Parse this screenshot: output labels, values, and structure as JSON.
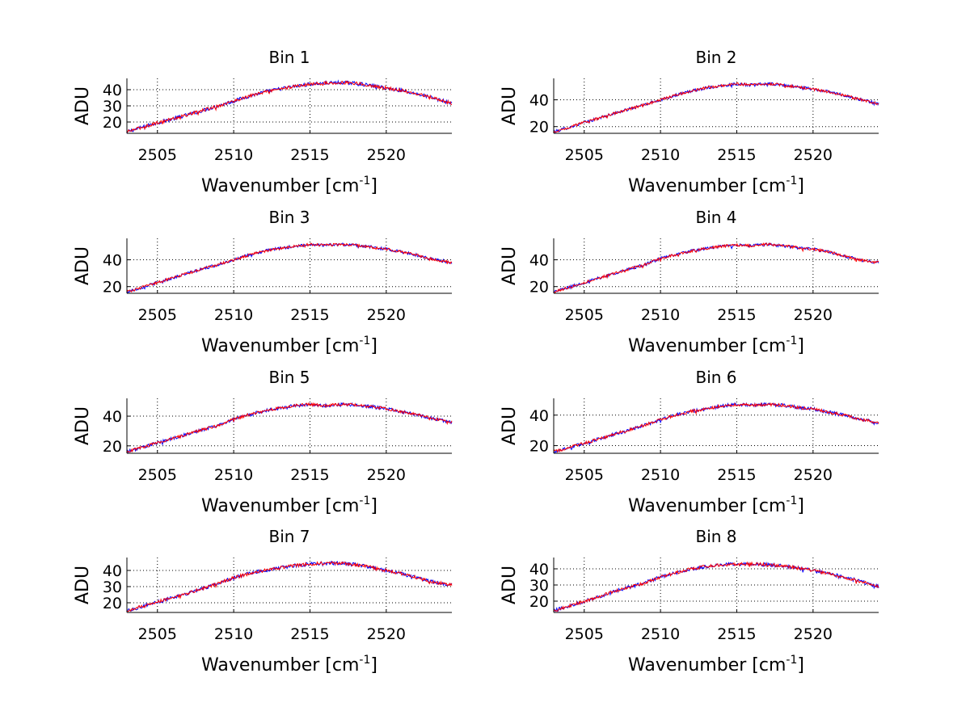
{
  "chart_data": [
    {
      "type": "line",
      "title": "Bin 1",
      "xlabel": "Wavenumber [cm",
      "xlabel_sup": "-1",
      "xlabel_end": "]",
      "ylabel": "ADU",
      "xlim": [
        2503,
        2524.3
      ],
      "ylim": [
        13,
        47
      ],
      "xticks": [
        2505,
        2510,
        2515,
        2520
      ],
      "yticks": [
        20,
        30,
        40
      ],
      "series": [
        {
          "color": "#0000ff",
          "x": [
            2503,
            2505,
            2507,
            2509,
            2510,
            2511,
            2512,
            2513,
            2514,
            2515,
            2516,
            2517,
            2518,
            2519,
            2520,
            2521,
            2522,
            2523,
            2524.3
          ],
          "y": [
            14,
            19.5,
            24.5,
            30,
            33,
            36,
            38.5,
            40.5,
            42,
            43.5,
            44,
            44.5,
            44,
            42.5,
            41,
            39.5,
            37.5,
            35,
            31.5
          ]
        },
        {
          "color": "#ff0000",
          "x": [
            2503,
            2505,
            2507,
            2509,
            2510,
            2511,
            2512,
            2513,
            2514,
            2515,
            2516,
            2517,
            2518,
            2519,
            2520,
            2521,
            2522,
            2523,
            2524.3
          ],
          "y": [
            14,
            19.5,
            24.5,
            30,
            33,
            36,
            38.5,
            40.5,
            42,
            43.5,
            44,
            44.5,
            44,
            42.5,
            41,
            39.5,
            37.5,
            35,
            31.5
          ]
        }
      ]
    },
    {
      "type": "line",
      "title": "Bin 2",
      "xlabel": "Wavenumber [cm",
      "xlabel_sup": "-1",
      "xlabel_end": "]",
      "ylabel": "ADU",
      "xlim": [
        2503,
        2524.3
      ],
      "ylim": [
        15,
        56
      ],
      "xticks": [
        2505,
        2510,
        2515,
        2520
      ],
      "yticks": [
        20,
        40
      ],
      "series": [
        {
          "color": "#0000ff",
          "x": [
            2503,
            2505,
            2507,
            2509,
            2510,
            2511,
            2512,
            2513,
            2514,
            2515,
            2516,
            2517,
            2518,
            2519,
            2520,
            2521,
            2522,
            2523,
            2524.3
          ],
          "y": [
            16,
            23,
            30,
            36.5,
            40,
            43.5,
            46.5,
            49,
            50.5,
            52,
            51,
            52,
            51,
            49.5,
            48,
            46,
            43.5,
            40.5,
            37
          ]
        },
        {
          "color": "#ff0000",
          "x": [
            2503,
            2505,
            2507,
            2509,
            2510,
            2511,
            2512,
            2513,
            2514,
            2515,
            2516,
            2517,
            2518,
            2519,
            2520,
            2521,
            2522,
            2523,
            2524.3
          ],
          "y": [
            16,
            23,
            30,
            36.5,
            40,
            43.5,
            46.5,
            49,
            50.5,
            52,
            51,
            52,
            51,
            49.5,
            48,
            46,
            43.5,
            40.5,
            37
          ]
        }
      ]
    },
    {
      "type": "line",
      "title": "Bin 3",
      "xlabel": "Wavenumber [cm",
      "xlabel_sup": "-1",
      "xlabel_end": "]",
      "ylabel": "ADU",
      "xlim": [
        2503,
        2524.3
      ],
      "ylim": [
        15,
        56
      ],
      "xticks": [
        2505,
        2510,
        2515,
        2520
      ],
      "yticks": [
        20,
        40
      ],
      "series": [
        {
          "color": "#0000ff",
          "x": [
            2503,
            2505,
            2507,
            2509,
            2510,
            2511,
            2512,
            2513,
            2514,
            2515,
            2516,
            2517,
            2518,
            2519,
            2520,
            2521,
            2522,
            2523,
            2524.3
          ],
          "y": [
            16,
            23,
            30,
            36.5,
            40,
            43.5,
            46.5,
            48.5,
            50,
            51.5,
            51,
            51.5,
            51,
            49.5,
            48,
            46,
            43.5,
            40.5,
            38
          ]
        },
        {
          "color": "#ff0000",
          "x": [
            2503,
            2505,
            2507,
            2509,
            2510,
            2511,
            2512,
            2513,
            2514,
            2515,
            2516,
            2517,
            2518,
            2519,
            2520,
            2521,
            2522,
            2523,
            2524.3
          ],
          "y": [
            16,
            23,
            30,
            36.5,
            40,
            43.5,
            46.5,
            48.5,
            50,
            51.5,
            51,
            51.5,
            51,
            49.5,
            48,
            46,
            43.5,
            40.5,
            38
          ]
        }
      ]
    },
    {
      "type": "line",
      "title": "Bin 4",
      "xlabel": "Wavenumber [cm",
      "xlabel_sup": "-1",
      "xlabel_end": "]",
      "ylabel": "ADU",
      "xlim": [
        2503,
        2524.3
      ],
      "ylim": [
        15,
        56
      ],
      "xticks": [
        2505,
        2510,
        2515,
        2520
      ],
      "yticks": [
        20,
        40
      ],
      "series": [
        {
          "color": "#0000ff",
          "x": [
            2503,
            2505,
            2507,
            2509,
            2510,
            2511,
            2512,
            2513,
            2514,
            2515,
            2516,
            2517,
            2518,
            2519,
            2520,
            2521,
            2522,
            2523,
            2524.3
          ],
          "y": [
            16,
            23,
            30,
            36.5,
            41,
            44,
            46.5,
            48.5,
            50,
            51,
            50.5,
            51.5,
            50.5,
            49,
            48,
            46,
            43,
            40,
            38
          ]
        },
        {
          "color": "#ff0000",
          "x": [
            2503,
            2505,
            2507,
            2509,
            2510,
            2511,
            2512,
            2513,
            2514,
            2515,
            2516,
            2517,
            2518,
            2519,
            2520,
            2521,
            2522,
            2523,
            2524.3
          ],
          "y": [
            16,
            23,
            30,
            36.5,
            41,
            44,
            46.5,
            48.5,
            50,
            51,
            50.5,
            51.5,
            50.5,
            49,
            48,
            46,
            43,
            40,
            38
          ]
        }
      ]
    },
    {
      "type": "line",
      "title": "Bin 5",
      "xlabel": "Wavenumber [cm",
      "xlabel_sup": "-1",
      "xlabel_end": "]",
      "ylabel": "ADU",
      "xlim": [
        2503,
        2524.3
      ],
      "ylim": [
        15,
        52
      ],
      "xticks": [
        2505,
        2510,
        2515,
        2520
      ],
      "yticks": [
        20,
        40
      ],
      "series": [
        {
          "color": "#0000ff",
          "x": [
            2503,
            2505,
            2507,
            2509,
            2510,
            2511,
            2512,
            2513,
            2514,
            2515,
            2516,
            2517,
            2518,
            2519,
            2520,
            2521,
            2522,
            2523,
            2524.3
          ],
          "y": [
            16,
            22,
            28,
            34,
            38,
            41,
            43.5,
            45.5,
            47,
            48,
            47,
            48,
            47.5,
            46.5,
            45,
            43,
            41,
            38.5,
            36
          ]
        },
        {
          "color": "#ff0000",
          "x": [
            2503,
            2505,
            2507,
            2509,
            2510,
            2511,
            2512,
            2513,
            2514,
            2515,
            2516,
            2517,
            2518,
            2519,
            2520,
            2521,
            2522,
            2523,
            2524.3
          ],
          "y": [
            16,
            22,
            28,
            34,
            38,
            41,
            43.5,
            45.5,
            47,
            48,
            47,
            48,
            47.5,
            46.5,
            45,
            43,
            41,
            38.5,
            36
          ]
        }
      ]
    },
    {
      "type": "line",
      "title": "Bin 6",
      "xlabel": "Wavenumber [cm",
      "xlabel_sup": "-1",
      "xlabel_end": "]",
      "ylabel": "ADU",
      "xlim": [
        2503,
        2524.3
      ],
      "ylim": [
        15,
        51
      ],
      "xticks": [
        2505,
        2510,
        2515,
        2520
      ],
      "yticks": [
        20,
        40
      ],
      "series": [
        {
          "color": "#0000ff",
          "x": [
            2503,
            2505,
            2507,
            2509,
            2510,
            2511,
            2512,
            2513,
            2514,
            2515,
            2516,
            2517,
            2518,
            2519,
            2520,
            2521,
            2522,
            2523,
            2524.3
          ],
          "y": [
            16,
            21.5,
            27.5,
            33.5,
            37,
            40,
            42.5,
            44,
            46,
            47,
            46.5,
            47,
            46.5,
            45,
            44,
            42,
            40,
            37.5,
            35
          ]
        },
        {
          "color": "#ff0000",
          "x": [
            2503,
            2505,
            2507,
            2509,
            2510,
            2511,
            2512,
            2513,
            2514,
            2515,
            2516,
            2517,
            2518,
            2519,
            2520,
            2521,
            2522,
            2523,
            2524.3
          ],
          "y": [
            16,
            21.5,
            27.5,
            33.5,
            37,
            40,
            42.5,
            44,
            46,
            47,
            46.5,
            47,
            46.5,
            45,
            44,
            42,
            40,
            37.5,
            35
          ]
        }
      ]
    },
    {
      "type": "line",
      "title": "Bin 7",
      "xlabel": "Wavenumber [cm",
      "xlabel_sup": "-1",
      "xlabel_end": "]",
      "ylabel": "ADU",
      "xlim": [
        2503,
        2524.3
      ],
      "ylim": [
        14,
        48
      ],
      "xticks": [
        2505,
        2510,
        2515,
        2520
      ],
      "yticks": [
        20,
        30,
        40
      ],
      "series": [
        {
          "color": "#0000ff",
          "x": [
            2503,
            2505,
            2507,
            2509,
            2510,
            2511,
            2512,
            2513,
            2514,
            2515,
            2516,
            2517,
            2518,
            2519,
            2520,
            2521,
            2522,
            2523,
            2524.3
          ],
          "y": [
            15,
            20.5,
            26,
            32,
            35.5,
            38,
            40,
            41.5,
            43,
            44,
            44.5,
            44.5,
            43.5,
            42,
            40,
            38,
            35.5,
            33,
            31
          ]
        },
        {
          "color": "#ff0000",
          "x": [
            2503,
            2505,
            2507,
            2509,
            2510,
            2511,
            2512,
            2513,
            2514,
            2515,
            2516,
            2517,
            2518,
            2519,
            2520,
            2521,
            2522,
            2523,
            2524.3
          ],
          "y": [
            15,
            20.5,
            26,
            32,
            35.5,
            38,
            40,
            41.5,
            43,
            44,
            44.5,
            44.5,
            43.5,
            42,
            40,
            38,
            35.5,
            33,
            31
          ]
        }
      ]
    },
    {
      "type": "line",
      "title": "Bin 8",
      "xlabel": "Wavenumber [cm",
      "xlabel_sup": "-1",
      "xlabel_end": "]",
      "ylabel": "ADU",
      "xlim": [
        2503,
        2524.3
      ],
      "ylim": [
        13,
        47
      ],
      "xticks": [
        2505,
        2510,
        2515,
        2520
      ],
      "yticks": [
        20,
        30,
        40
      ],
      "series": [
        {
          "color": "#0000ff",
          "x": [
            2503,
            2505,
            2507,
            2509,
            2510,
            2511,
            2512,
            2513,
            2514,
            2515,
            2516,
            2517,
            2518,
            2519,
            2520,
            2521,
            2522,
            2523,
            2524.3
          ],
          "y": [
            14,
            20,
            26,
            31.5,
            35,
            37.5,
            40,
            41.5,
            42.5,
            43,
            43,
            42.5,
            42,
            40.5,
            39,
            37,
            35,
            32.5,
            29
          ]
        },
        {
          "color": "#ff0000",
          "x": [
            2503,
            2505,
            2507,
            2509,
            2510,
            2511,
            2512,
            2513,
            2514,
            2515,
            2516,
            2517,
            2518,
            2519,
            2520,
            2521,
            2522,
            2523,
            2524.3
          ],
          "y": [
            14,
            20,
            26,
            31.5,
            35,
            37.5,
            40,
            41.5,
            42.5,
            43,
            43,
            42.5,
            42,
            40.5,
            39,
            37,
            35,
            32.5,
            29
          ]
        }
      ]
    }
  ]
}
